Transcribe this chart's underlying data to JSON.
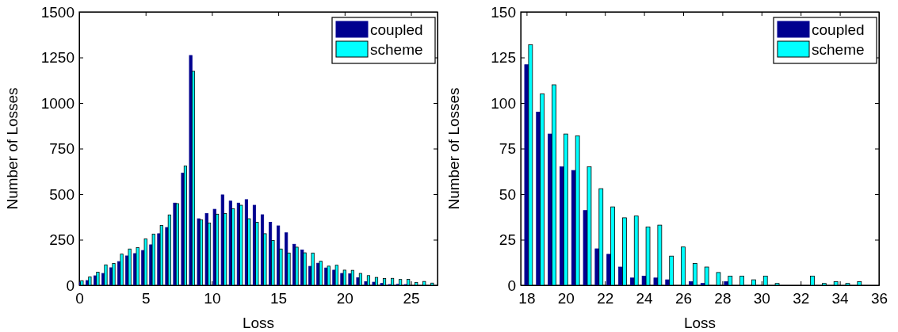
{
  "chart_data": [
    {
      "type": "bar",
      "xlabel": "Loss",
      "ylabel": "Number of Losses",
      "legend": "top right",
      "grid": false,
      "x": [
        0.1,
        0.7,
        1.3,
        1.9,
        2.5,
        3.1,
        3.7,
        4.3,
        4.9,
        5.5,
        6.1,
        6.7,
        7.3,
        7.9,
        8.5,
        9.1,
        9.7,
        10.3,
        10.9,
        11.5,
        12.1,
        12.7,
        13.3,
        13.9,
        14.5,
        15.1,
        15.7,
        16.3,
        16.9,
        17.5,
        18.1,
        18.7,
        19.3,
        19.9,
        20.5,
        21.1,
        21.7,
        22.3,
        22.9,
        23.5,
        24.1,
        24.7,
        25.3,
        25.9,
        26.5
      ],
      "xlim": [
        0,
        27
      ],
      "xticks": [
        0,
        5,
        10,
        15,
        20,
        25
      ],
      "ylim": [
        0,
        1500
      ],
      "yticks": [
        0,
        250,
        500,
        750,
        1000,
        1250,
        1500
      ],
      "series": [
        {
          "name": "coupled",
          "color": "#00008f",
          "values": [
            15,
            26,
            52,
            65,
            96,
            130,
            161,
            174,
            191,
            222,
            283,
            317,
            451,
            616,
            1261,
            365,
            394,
            417,
            496,
            462,
            451,
            470,
            439,
            387,
            346,
            326,
            288,
            225,
            194,
            104,
            121,
            95,
            83,
            65,
            63,
            41,
            20,
            17,
            10,
            4,
            5,
            4,
            null,
            0,
            null
          ]
        },
        {
          "name": "scheme",
          "color": "#00ffff",
          "values": [
            25,
            46,
            72,
            112,
            120,
            171,
            199,
            207,
            254,
            281,
            328,
            386,
            448,
            655,
            1174,
            359,
            341,
            390,
            394,
            420,
            439,
            365,
            346,
            283,
            246,
            199,
            177,
            209,
            178,
            177,
            132,
            105,
            110,
            83,
            82,
            65,
            53,
            43,
            37,
            38,
            32,
            33,
            16,
            21,
            12
          ]
        }
      ]
    },
    {
      "type": "bar",
      "xlabel": "Loss",
      "ylabel": "Number of Losses",
      "legend": "top right",
      "grid": false,
      "x": [
        18.1,
        18.7,
        19.3,
        19.9,
        20.5,
        21.1,
        21.7,
        22.3,
        22.9,
        23.5,
        24.1,
        24.7,
        25.3,
        25.9,
        26.5,
        27.1,
        27.7,
        28.3,
        28.9,
        29.5,
        30.1,
        30.7,
        31.3,
        31.9,
        32.5,
        33.1,
        33.7,
        34.3,
        34.9
      ],
      "xlim": [
        17.7,
        36
      ],
      "xticks": [
        18,
        20,
        22,
        24,
        26,
        28,
        30,
        32,
        34,
        36
      ],
      "ylim": [
        0,
        150
      ],
      "yticks": [
        0,
        25,
        50,
        75,
        100,
        125,
        150
      ],
      "series": [
        {
          "name": "coupled",
          "color": "#00008f",
          "values": [
            121,
            95,
            83,
            65,
            63,
            41,
            20,
            17,
            10,
            4,
            5,
            4,
            3,
            0,
            2,
            1,
            0,
            2,
            0,
            0,
            0,
            0,
            0,
            0,
            0,
            0,
            0,
            0,
            0
          ]
        },
        {
          "name": "scheme",
          "color": "#00ffff",
          "values": [
            132,
            105,
            110,
            83,
            82,
            65,
            53,
            43,
            37,
            38,
            32,
            33,
            16,
            21,
            12,
            10,
            7,
            5,
            5,
            3,
            5,
            1,
            0,
            0,
            5,
            1,
            2,
            1,
            2
          ]
        }
      ]
    }
  ]
}
